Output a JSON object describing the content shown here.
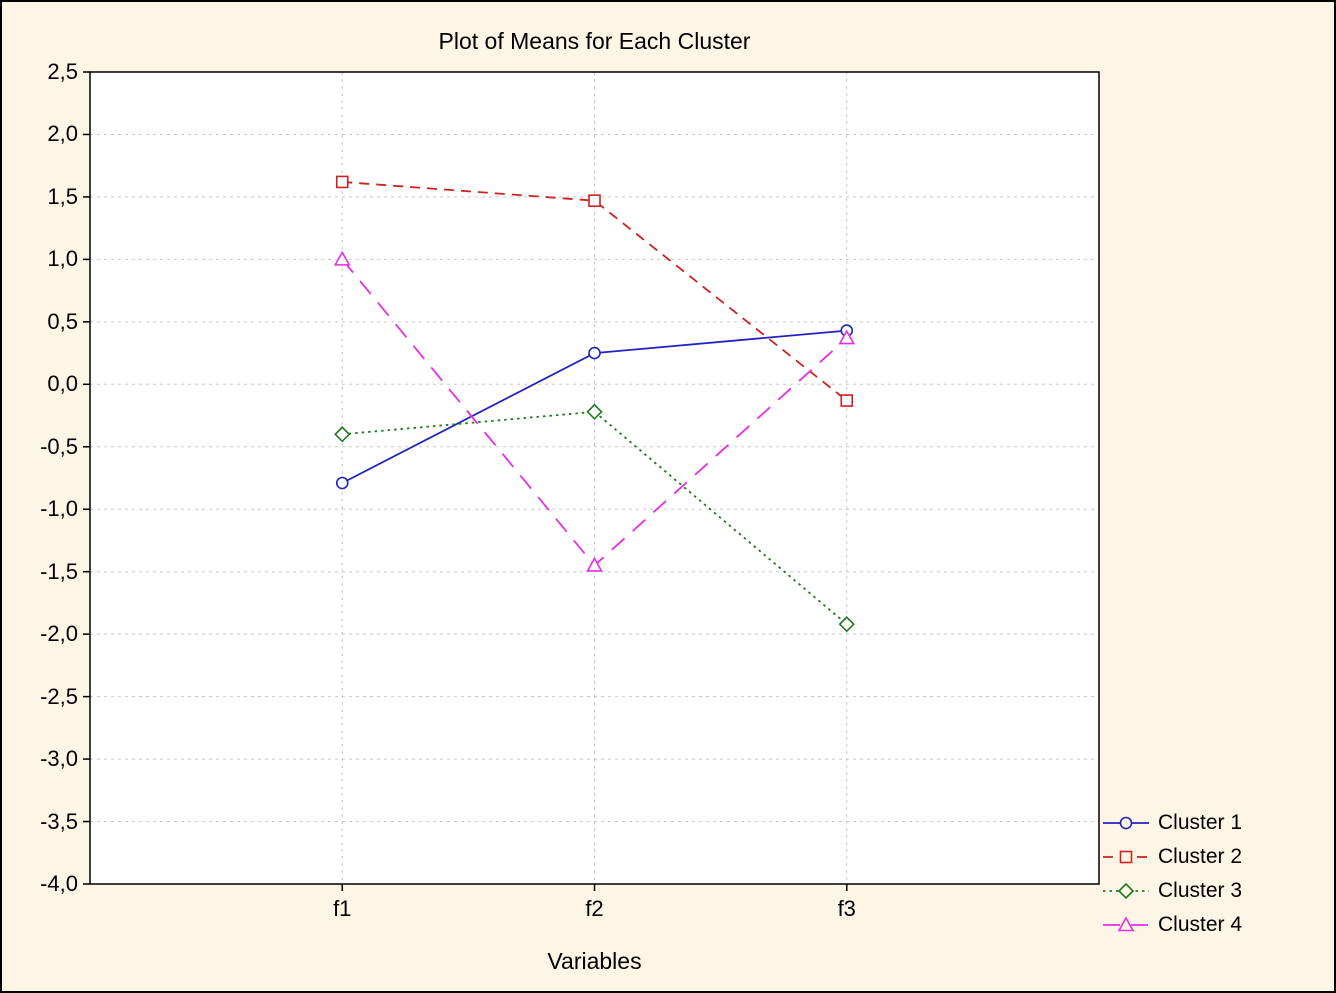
{
  "colors": {
    "background": "#fdf5e6",
    "plot_bg": "#ffffff",
    "grid": "#c8c8c8",
    "axis": "#000000"
  },
  "chart_data": {
    "type": "line",
    "title": "Plot of Means for Each Cluster",
    "xlabel": "Variables",
    "ylabel": "",
    "categories": [
      "f1",
      "f2",
      "f3"
    ],
    "ylim": [
      -4.0,
      2.5
    ],
    "ytick_step": 0.5,
    "ytick_labels": [
      "2,5",
      "2,0",
      "1,5",
      "1,0",
      "0,5",
      "0,0",
      "-0,5",
      "-1,0",
      "-1,5",
      "-2,0",
      "-2,5",
      "-3,0",
      "-3,5",
      "-4,0"
    ],
    "grid": true,
    "legend_position": "bottom-right",
    "series": [
      {
        "name": "Cluster 1",
        "color": "#2222c0",
        "line_style": "solid",
        "marker": "circle",
        "values": [
          -0.79,
          0.25,
          0.43
        ]
      },
      {
        "name": "Cluster 2",
        "color": "#cc2222",
        "line_style": "dashed",
        "marker": "square",
        "values": [
          1.62,
          1.47,
          -0.13
        ]
      },
      {
        "name": "Cluster 3",
        "color": "#1e7a1e",
        "line_style": "dotted",
        "marker": "diamond",
        "values": [
          -0.4,
          -0.22,
          -1.92
        ]
      },
      {
        "name": "Cluster 4",
        "color": "#e62ee6",
        "line_style": "longdash",
        "marker": "triangle",
        "values": [
          1.0,
          -1.45,
          0.37
        ]
      }
    ]
  }
}
